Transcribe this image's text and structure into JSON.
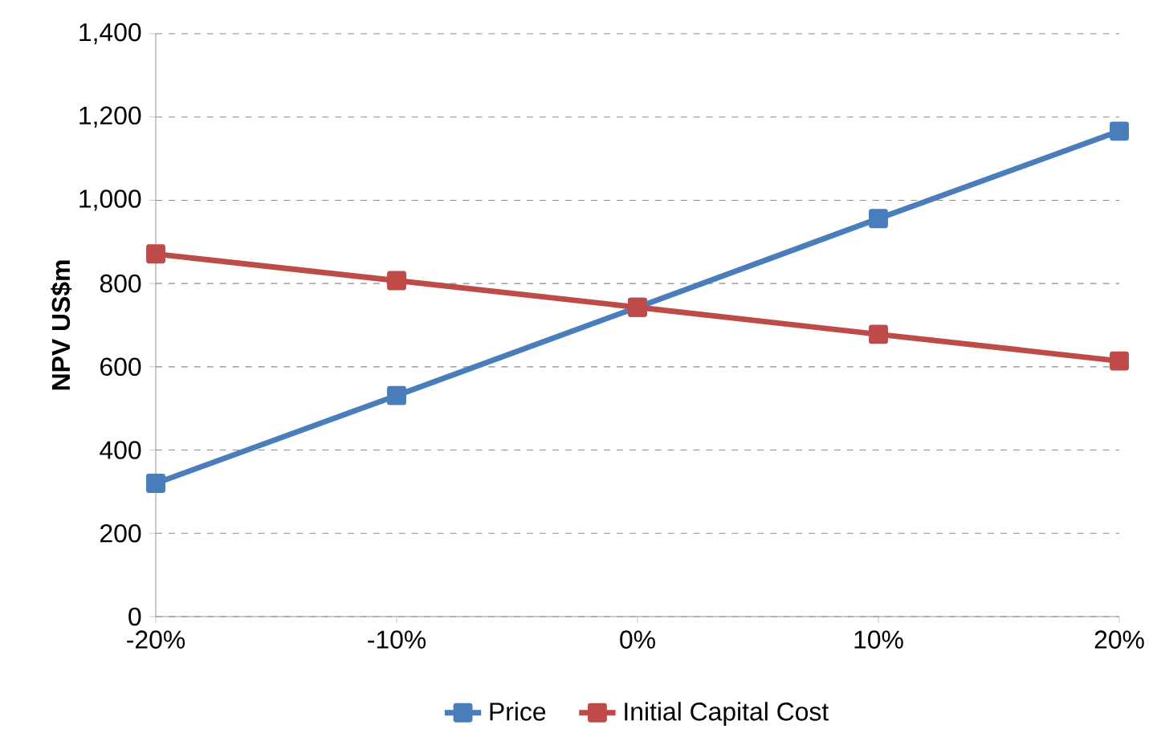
{
  "chart_data": {
    "type": "line",
    "ylabel": "NPV US$m",
    "categories": [
      "-20%",
      "-10%",
      "0%",
      "10%",
      "20%"
    ],
    "series": [
      {
        "name": "Price",
        "color": "#4a7ebb",
        "values": [
          320,
          531,
          743,
          956,
          1166
        ]
      },
      {
        "name": "Initial Capital Cost",
        "color": "#be4b48",
        "values": [
          871,
          807,
          743,
          678,
          614
        ]
      }
    ],
    "ylim": [
      0,
      1400
    ],
    "yticks": [
      0,
      200,
      400,
      600,
      800,
      {
        "value": 1000,
        "label": "1,000"
      },
      {
        "value": 1200,
        "label": "1,200"
      },
      {
        "value": 1400,
        "label": "1,400"
      }
    ],
    "grid": "y",
    "legend": "bottom",
    "marker": "square",
    "line_style": "solid"
  }
}
